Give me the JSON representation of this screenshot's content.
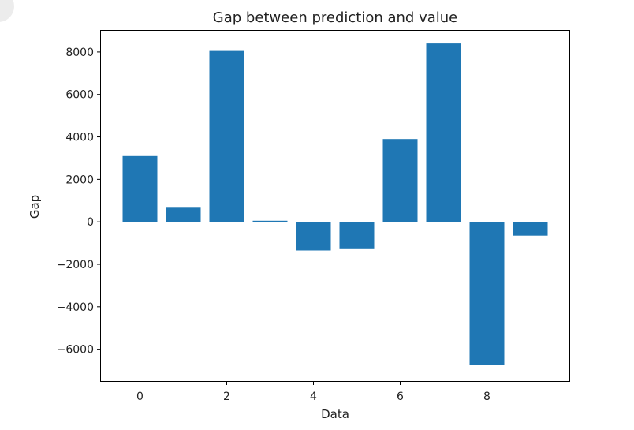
{
  "chart_data": {
    "type": "bar",
    "title": "Gap between prediction and value",
    "xlabel": "Data",
    "ylabel": "Gap",
    "categories": [
      0,
      1,
      2,
      3,
      4,
      5,
      6,
      7,
      8,
      9
    ],
    "values": [
      3100,
      700,
      8050,
      50,
      -1350,
      -1250,
      3900,
      8400,
      -6750,
      -650
    ],
    "xticks": [
      "0",
      "2",
      "4",
      "6",
      "8"
    ],
    "xtick_values": [
      0,
      2,
      4,
      6,
      8
    ],
    "yticks": [
      "8000",
      "6000",
      "4000",
      "2000",
      "0",
      "−2000",
      "−4000",
      "−6000"
    ],
    "ytick_values": [
      8000,
      6000,
      4000,
      2000,
      0,
      -2000,
      -4000,
      -6000
    ],
    "xlim": [
      -0.9,
      9.9
    ],
    "ylim": [
      -7500,
      9000
    ],
    "bar_color": "#1f77b4",
    "grid": false
  }
}
